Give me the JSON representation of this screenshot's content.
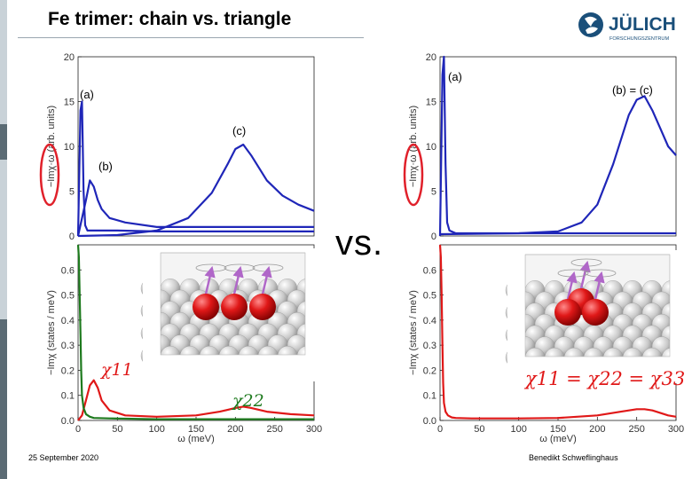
{
  "slide": {
    "title": "Fe trimer: chain vs. triangle",
    "vs_label": "vs.",
    "footer_date": "25 September 2020",
    "footer_author": "Benedikt Schweflinghaus",
    "logo_text": "JÜLICH",
    "logo_subtext": "FORSCHUNGSZENTRUM",
    "colors": {
      "blue": "#1f26b8",
      "red": "#e01818",
      "green": "#1e7a1e",
      "sidebar": "#5b6b74",
      "circle": "#e0202a"
    }
  },
  "chart_data": [
    {
      "type": "line",
      "panel": "chain-upper",
      "ylabel": "−Imχ·ω (arb. units)",
      "ylim": [
        0,
        20
      ],
      "xlim": [
        0,
        300
      ],
      "yticks": [
        "0",
        "5",
        "10",
        "15",
        "20"
      ],
      "series": [
        {
          "name": "(a)",
          "x": [
            0,
            3,
            5,
            7,
            9,
            12,
            20,
            50,
            100,
            200,
            300
          ],
          "values": [
            0,
            14,
            15,
            5,
            1.2,
            0.6,
            0.6,
            0.6,
            0.5,
            0.5,
            0.5
          ]
        },
        {
          "name": "(b)",
          "x": [
            0,
            10,
            15,
            20,
            25,
            30,
            40,
            60,
            100,
            200,
            300
          ],
          "values": [
            0,
            4,
            6.2,
            5.5,
            4,
            3,
            2,
            1.5,
            1,
            1,
            1
          ]
        },
        {
          "name": "(c)",
          "x": [
            0,
            50,
            100,
            140,
            170,
            190,
            200,
            210,
            220,
            240,
            260,
            280,
            300
          ],
          "values": [
            0,
            0.1,
            0.6,
            2,
            4.8,
            8,
            9.7,
            10.2,
            9,
            6.2,
            4.5,
            3.5,
            2.8
          ]
        }
      ],
      "annotations": [
        "(a)",
        "(b)",
        "(c)"
      ]
    },
    {
      "type": "line",
      "panel": "chain-lower",
      "xlabel": "ω (meV)",
      "ylabel": "−Imχ (states / meV)",
      "xlim": [
        0,
        300
      ],
      "ylim": [
        0,
        0.7
      ],
      "xticks": [
        "0",
        "50",
        "100",
        "150",
        "200",
        "250",
        "300"
      ],
      "yticks": [
        "0.0",
        "0.1",
        "0.2",
        "0.3",
        "0.4",
        "0.5",
        "0.6"
      ],
      "series": [
        {
          "name": "χ11",
          "x": [
            0,
            5,
            10,
            15,
            20,
            25,
            30,
            40,
            60,
            100,
            150,
            180,
            200,
            210,
            220,
            240,
            270,
            300
          ],
          "values": [
            0,
            0.02,
            0.08,
            0.14,
            0.16,
            0.13,
            0.08,
            0.04,
            0.02,
            0.015,
            0.02,
            0.035,
            0.05,
            0.055,
            0.05,
            0.035,
            0.025,
            0.02
          ]
        },
        {
          "name": "χ22",
          "x": [
            0,
            1,
            2,
            3,
            4,
            5,
            7,
            10,
            15,
            20,
            40,
            100,
            300
          ],
          "values": [
            0.7,
            0.65,
            0.5,
            0.35,
            0.2,
            0.1,
            0.05,
            0.025,
            0.015,
            0.01,
            0.008,
            0.005,
            0.005
          ]
        }
      ],
      "legend": [
        "χ11",
        "χ22"
      ]
    },
    {
      "type": "line",
      "panel": "triangle-upper",
      "ylabel": "−Imχ·ω (arb. units)",
      "ylim": [
        0,
        20
      ],
      "xlim": [
        0,
        300
      ],
      "yticks": [
        "0",
        "5",
        "10",
        "15",
        "20"
      ],
      "series": [
        {
          "name": "(a)",
          "x": [
            0,
            3,
            5,
            7,
            9,
            12,
            20,
            300
          ],
          "values": [
            0,
            18,
            20,
            8,
            1.5,
            0.6,
            0.3,
            0.3
          ]
        },
        {
          "name": "(b) = (c)",
          "x": [
            0,
            100,
            150,
            180,
            200,
            220,
            240,
            250,
            260,
            270,
            280,
            290,
            300
          ],
          "values": [
            0.2,
            0.3,
            0.5,
            1.5,
            3.5,
            8,
            13.5,
            15.2,
            15.6,
            14,
            12,
            10,
            9
          ]
        }
      ],
      "annotations": [
        "(a)",
        "(b) = (c)"
      ]
    },
    {
      "type": "line",
      "panel": "triangle-lower",
      "xlabel": "ω (meV)",
      "ylabel": "−Imχ (states / meV)",
      "xlim": [
        0,
        300
      ],
      "ylim": [
        0,
        0.7
      ],
      "xticks": [
        "0",
        "50",
        "100",
        "150",
        "200",
        "250",
        "300"
      ],
      "yticks": [
        "0.0",
        "0.1",
        "0.2",
        "0.3",
        "0.4",
        "0.5",
        "0.6"
      ],
      "series": [
        {
          "name": "χ11 = χ22 = χ33",
          "x": [
            0,
            1,
            2,
            3,
            4,
            5,
            7,
            10,
            15,
            20,
            40,
            100,
            150,
            200,
            230,
            250,
            260,
            270,
            290,
            300
          ],
          "values": [
            0.7,
            0.65,
            0.5,
            0.3,
            0.15,
            0.07,
            0.035,
            0.02,
            0.012,
            0.01,
            0.008,
            0.008,
            0.01,
            0.02,
            0.035,
            0.045,
            0.045,
            0.04,
            0.02,
            0.015
          ]
        }
      ],
      "legend": [
        "χ11 = χ22 = χ33"
      ]
    }
  ]
}
